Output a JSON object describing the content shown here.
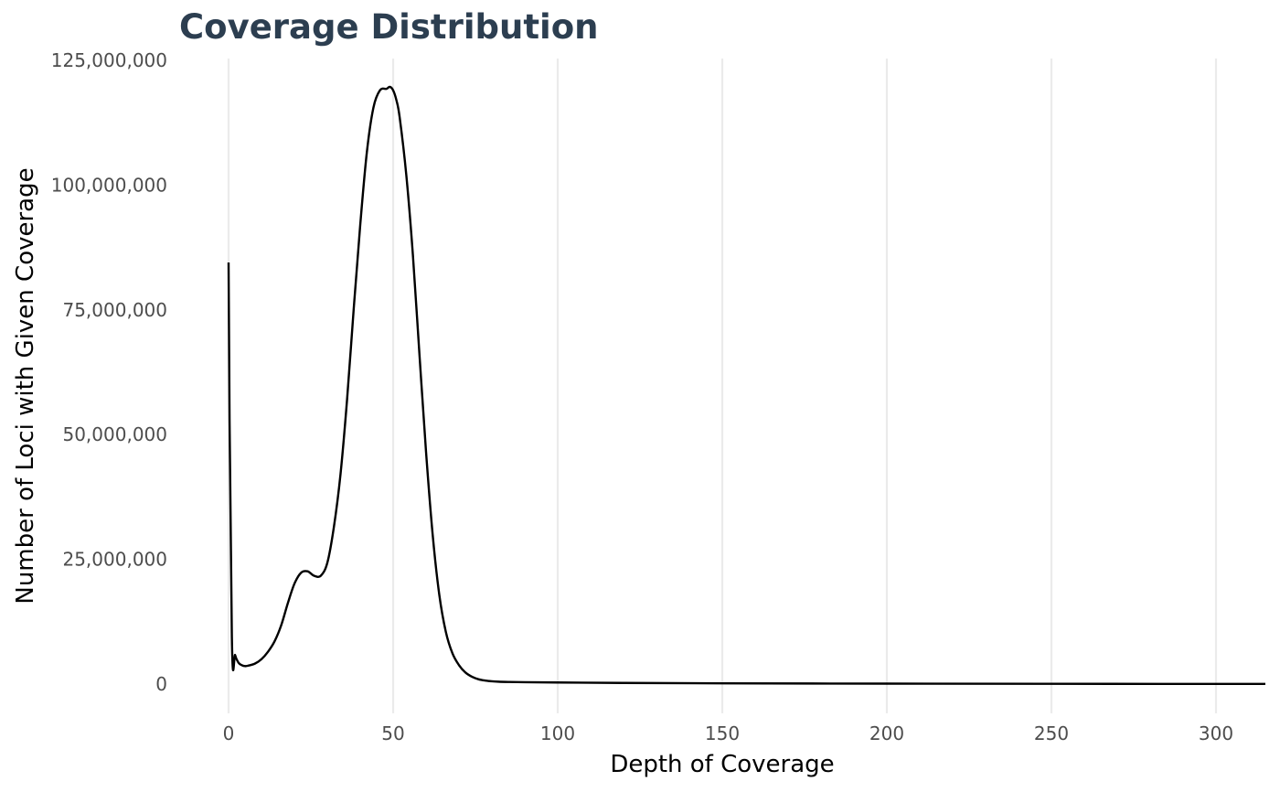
{
  "chart_data": {
    "type": "line",
    "title": "Coverage Distribution",
    "xlabel": "Depth of Coverage",
    "ylabel": "Number of Loci with Given Coverage",
    "xlim": [
      0,
      315
    ],
    "ylim": [
      0,
      125000000
    ],
    "xticks": [
      0,
      50,
      100,
      150,
      200,
      250,
      300
    ],
    "xtick_labels": [
      "0",
      "50",
      "100",
      "150",
      "200",
      "250",
      "300"
    ],
    "yticks": [
      0,
      25000000,
      50000000,
      75000000,
      100000000,
      125000000
    ],
    "ytick_labels": [
      "0",
      "25,000,000",
      "50,000,000",
      "75,000,000",
      "100,000,000",
      "125,000,000"
    ],
    "grid": {
      "vertical": true,
      "horizontal": false
    },
    "colors": {
      "line": "#000000",
      "title": "#2c3e50",
      "grid": "#ebebeb"
    },
    "series": [
      {
        "x": [
          0,
          1,
          2,
          3,
          4,
          5,
          6,
          8,
          10,
          12,
          14,
          16,
          18,
          20,
          22,
          24,
          26,
          28,
          30,
          32,
          34,
          36,
          38,
          40,
          42,
          44,
          46,
          48,
          49,
          50,
          51,
          52,
          54,
          56,
          58,
          60,
          62,
          64,
          66,
          68,
          70,
          72,
          74,
          76,
          78,
          80,
          82,
          85,
          90,
          100,
          120,
          150,
          200,
          250,
          300,
          315
        ],
        "y": [
          84500000,
          9500000,
          5800000,
          4300000,
          3800000,
          3600000,
          3700000,
          4100000,
          5000000,
          6500000,
          8600000,
          11800000,
          16200000,
          20100000,
          22300000,
          22600000,
          21700000,
          21700000,
          24300000,
          31500000,
          42000000,
          57000000,
          75000000,
          92000000,
          106500000,
          115500000,
          119000000,
          119300000,
          119700000,
          119000000,
          117000000,
          113500000,
          102000000,
          86000000,
          66000000,
          46500000,
          30000000,
          18000000,
          10500000,
          6200000,
          3800000,
          2300000,
          1450000,
          950000,
          700000,
          560000,
          480000,
          430000,
          380000,
          320000,
          230000,
          150000,
          90000,
          55000,
          35000,
          30000
        ]
      }
    ]
  }
}
